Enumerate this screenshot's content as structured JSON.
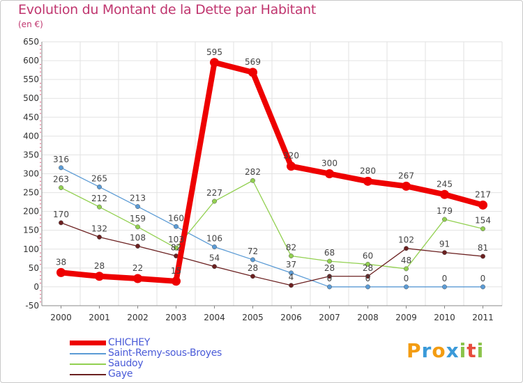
{
  "title": "Evolution du Montant de la Dette par Habitant",
  "subtitle": "(en €)",
  "logo": {
    "letters": [
      "P",
      "r",
      "o",
      "x",
      "i",
      "t",
      "i"
    ],
    "colors": [
      "#f39c12",
      "#3a9ad9",
      "#f39c12",
      "#3a9ad9",
      "#8bc34a",
      "#e74c3c",
      "#8bc34a"
    ]
  },
  "chart_data": {
    "type": "line",
    "title": "Evolution du Montant de la Dette par Habitant",
    "ylabel": "(en €)",
    "xlabel": "",
    "x": [
      "2000",
      "2001",
      "2002",
      "2003",
      "2004",
      "2005",
      "2006",
      "2007",
      "2008",
      "2009",
      "2010",
      "2011"
    ],
    "ylim": [
      -50,
      650
    ],
    "yticks": [
      -50,
      0,
      50,
      100,
      150,
      200,
      250,
      300,
      350,
      400,
      450,
      500,
      550,
      600,
      650
    ],
    "grid": true,
    "legend": "bottom-left",
    "series": [
      {
        "name": "CHICHEY",
        "color": "#ee0000",
        "values": [
          38,
          28,
          22,
          15,
          595,
          569,
          320,
          300,
          280,
          267,
          245,
          217
        ]
      },
      {
        "name": "Saint-Remy-sous-Broyes",
        "color": "#5b9bd5",
        "values": [
          316,
          265,
          213,
          160,
          106,
          72,
          37,
          0,
          0,
          0,
          0,
          0
        ]
      },
      {
        "name": "Saudoy",
        "color": "#92d050",
        "values": [
          263,
          212,
          159,
          103,
          227,
          282,
          82,
          68,
          60,
          48,
          179,
          154
        ]
      },
      {
        "name": "Gaye",
        "color": "#6b2020",
        "values": [
          170,
          132,
          108,
          82,
          54,
          28,
          4,
          28,
          28,
          102,
          91,
          81
        ]
      }
    ]
  }
}
